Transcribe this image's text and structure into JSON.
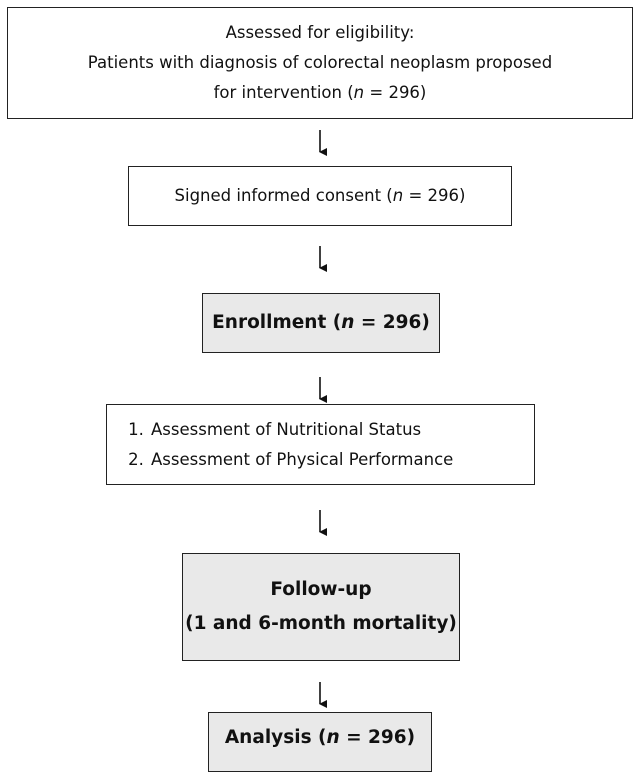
{
  "boxes": [
    {
      "lines": [
        [
          "Assessed for eligibility:"
        ],
        [
          "Patients with diagnosis of colorectal neoplasm proposed"
        ],
        [
          "for intervention (",
          "n",
          " = 296)"
        ]
      ]
    },
    {
      "lines": [
        [
          "Signed informed consent (",
          "n",
          " = 296)"
        ]
      ]
    },
    {
      "lines": [
        [
          "Enrollment (",
          "n",
          " = 296)"
        ]
      ]
    },
    {
      "items": [
        {
          "number": "1.",
          "text": "Assessment of Nutritional Status"
        },
        {
          "number": "2.",
          "text": "Assessment of Physical Performance"
        }
      ]
    },
    {
      "lines": [
        [
          "Follow-up"
        ],
        [
          "(1 and 6-month mortality)"
        ]
      ]
    },
    {
      "lines": [
        [
          "Analysis (",
          "n",
          " = 296)"
        ]
      ]
    }
  ]
}
